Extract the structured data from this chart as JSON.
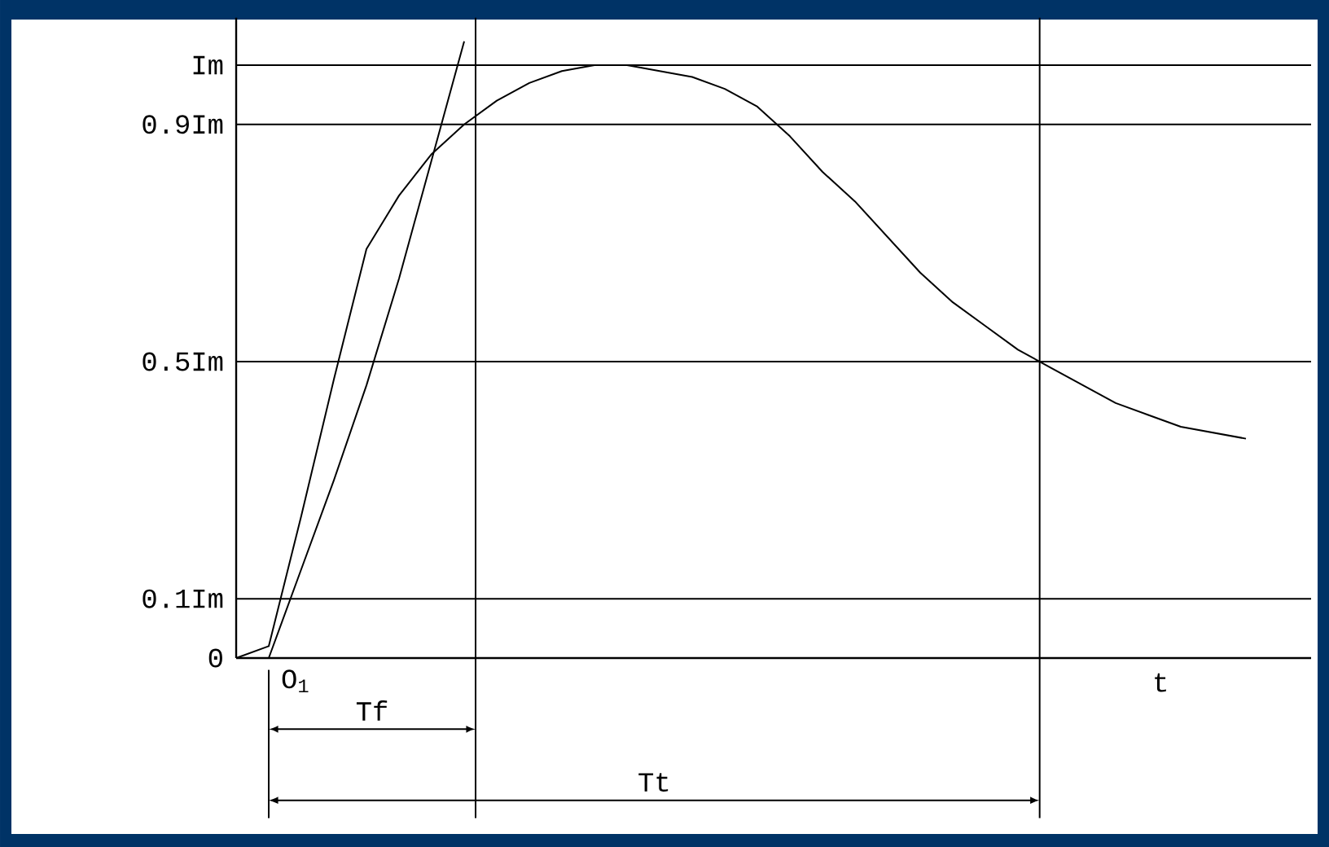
{
  "chart_data": {
    "type": "line",
    "categories": [
      null,
      null,
      null,
      null,
      null,
      null,
      null,
      null,
      null,
      null,
      null,
      null,
      null,
      null,
      null,
      null,
      null,
      null,
      null,
      null,
      null,
      null,
      null,
      null,
      null,
      null,
      null,
      null,
      null,
      null,
      null,
      null
    ],
    "series": [
      {
        "color": "#000000",
        "values": [
          0,
          0.02,
          0.24,
          0.47,
          0.69,
          0.78,
          0.85,
          0.9,
          0.94,
          0.97,
          0.99,
          1.0,
          1.0,
          0.99,
          0.98,
          0.96,
          0.93,
          0.88,
          0.82,
          0.77,
          0.71,
          0.65,
          0.6,
          0.56,
          0.52,
          0.49,
          0.46,
          0.43,
          0.41,
          0.39,
          0.38,
          0.37
        ]
      },
      {
        "color": "#000000",
        "values": [
          null,
          0,
          0.15,
          0.3,
          0.46,
          0.64,
          0.84,
          1.04,
          null,
          null,
          null,
          null,
          null,
          null,
          null,
          null,
          null,
          null,
          null,
          null,
          null,
          null,
          null,
          null,
          null,
          null,
          null,
          null,
          null,
          null,
          null,
          null
        ]
      }
    ],
    "ylim": [
      0,
      1.08
    ],
    "yticks": [
      {
        "value": 1,
        "label": "Im"
      },
      {
        "value": 0.9,
        "label": "0.9Im"
      },
      {
        "value": 0.5,
        "label": "0.5Im"
      },
      {
        "value": 0.1,
        "label": "0.1Im"
      },
      0
    ],
    "ref_lines": [
      {
        "axis": "y",
        "value": 1
      },
      {
        "axis": "y",
        "value": 0.9
      },
      {
        "axis": "y",
        "value": 0.5
      },
      {
        "axis": "y",
        "value": 0.1
      }
    ],
    "xlabel": "t",
    "annotations": [
      "O$_{1}$",
      "Tf",
      "Tt"
    ],
    "tick_labels": "y",
    "marker": "none",
    "line_style": "solid"
  }
}
